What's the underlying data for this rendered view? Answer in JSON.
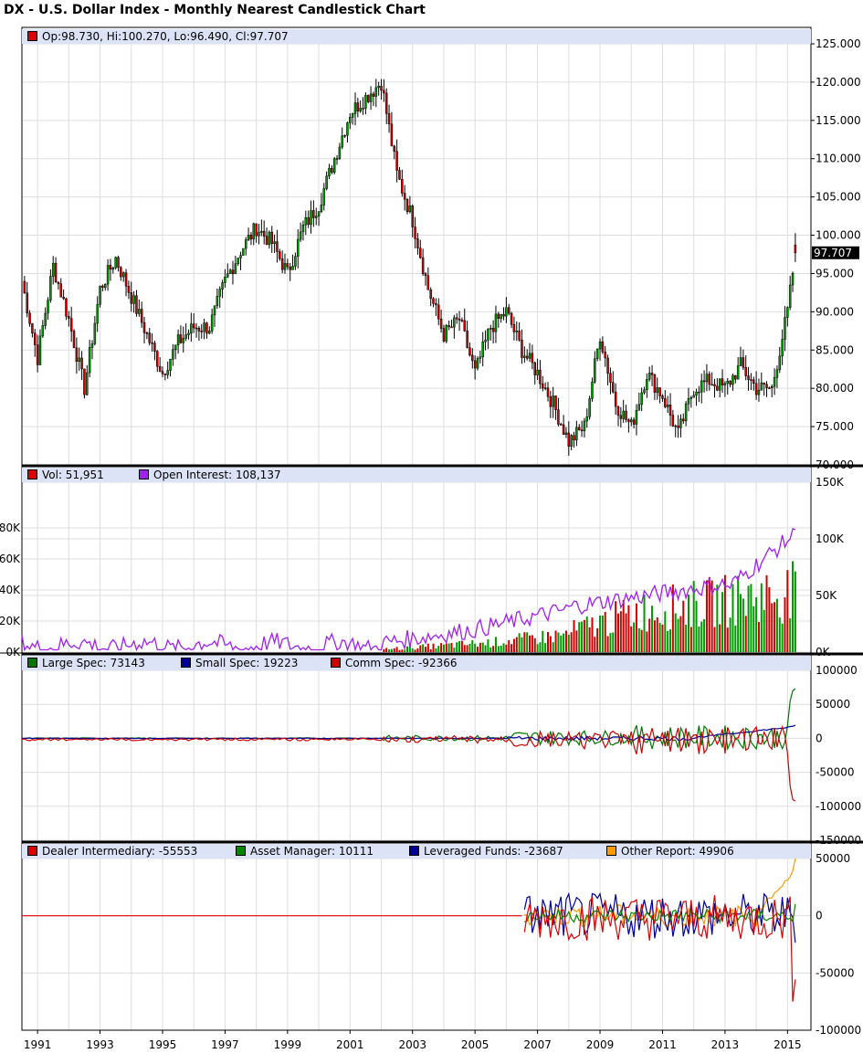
{
  "title": "DX - U.S. Dollar Index - Monthly Nearest Candlestick Chart",
  "colors": {
    "up": "#009900",
    "down": "#cc0000",
    "oi": "#a020f0",
    "large": "#007700",
    "small": "#000099",
    "comm": "#cc0000",
    "dealer": "#dd0000",
    "asset": "#008800",
    "leveraged": "#000099",
    "other": "#ff9900",
    "legend_bg": "#dde3f7",
    "grid": "#dddddd"
  },
  "price_panel": {
    "ohlc_label": "Op:98.730, Hi:100.270, Lo:96.490, Cl:97.707",
    "last_value_label": "97.707",
    "y_ticks": [
      "125.000",
      "120.000",
      "115.000",
      "110.000",
      "105.000",
      "100.000",
      "95.000",
      "90.000",
      "85.000",
      "80.000",
      "75.000",
      "70.000"
    ]
  },
  "volume_panel": {
    "vol_label": "Vol: 51,951",
    "oi_label": "Open Interest: 108,137",
    "right_ticks": [
      "150K",
      "100K",
      "50K",
      "0K"
    ],
    "left_ticks": [
      "80K",
      "60K",
      "40K",
      "20K",
      "0K"
    ]
  },
  "cot_panel": {
    "large_label": "Large Spec: 73143",
    "small_label": "Small Spec: 19223",
    "comm_label": "Comm Spec: -92366",
    "y_ticks": [
      "100000",
      "50000",
      "0",
      "-50000",
      "-100000",
      "-150000"
    ]
  },
  "tff_panel": {
    "dealer_label": "Dealer Intermediary: -55553",
    "asset_label": "Asset Manager: 10111",
    "leveraged_label": "Leveraged Funds: -23687",
    "other_label": "Other Report: 49906",
    "y_ticks": [
      "50000",
      "0",
      "-50000",
      "-100000"
    ]
  },
  "x_axis": {
    "labels": [
      "1991",
      "1993",
      "1995",
      "1997",
      "1999",
      "2001",
      "2003",
      "2005",
      "2007",
      "2009",
      "2011",
      "2013",
      "2015"
    ]
  },
  "chart_data": {
    "type": "line",
    "title": "DX - U.S. Dollar Index - Monthly Nearest Candlestick Chart",
    "x": [
      1990.5,
      1991.0,
      1991.5,
      1992.0,
      1992.5,
      1993.0,
      1993.5,
      1994.0,
      1994.5,
      1995.0,
      1995.5,
      1996.0,
      1996.5,
      1997.0,
      1997.5,
      1998.0,
      1998.5,
      1999.0,
      1999.5,
      2000.0,
      2000.5,
      2001.0,
      2001.5,
      2002.0,
      2002.5,
      2003.0,
      2003.5,
      2004.0,
      2004.5,
      2005.0,
      2005.5,
      2006.0,
      2006.5,
      2007.0,
      2007.5,
      2008.0,
      2008.5,
      2009.0,
      2009.5,
      2010.0,
      2010.5,
      2011.0,
      2011.5,
      2012.0,
      2012.5,
      2013.0,
      2013.5,
      2014.0,
      2014.5,
      2015.0,
      2015.25
    ],
    "series": [
      {
        "name": "Close",
        "values": [
          94,
          84,
          96,
          89,
          80,
          93,
          97,
          92,
          87,
          82,
          86,
          88,
          88,
          94,
          98,
          101,
          99,
          95,
          101,
          104,
          110,
          116,
          118,
          120,
          108,
          102,
          93,
          87,
          89,
          82,
          88,
          90,
          85,
          82,
          78,
          73,
          75,
          87,
          78,
          75,
          82,
          79,
          74,
          80,
          81,
          80,
          83,
          80,
          80,
          90,
          97.7
        ]
      }
    ],
    "ylim": [
      70,
      125
    ],
    "xlim": [
      1990.5,
      2015.75
    ],
    "ohlc_last": {
      "open": 98.73,
      "high": 100.27,
      "low": 96.49,
      "close": 97.707
    }
  }
}
